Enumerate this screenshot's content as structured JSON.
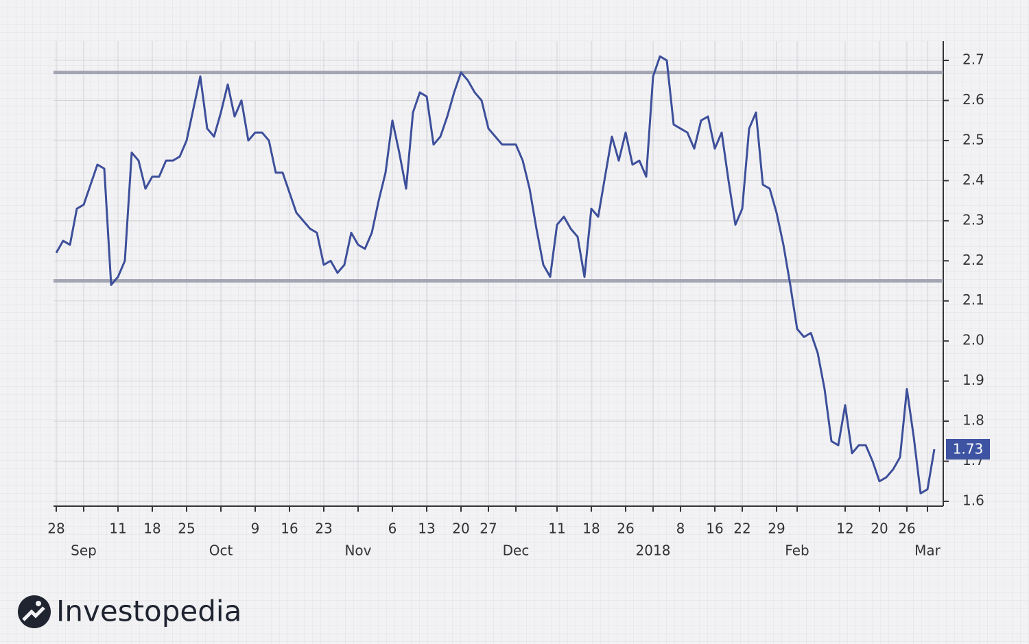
{
  "chart_data": {
    "type": "line",
    "categories": [
      "28",
      null,
      null,
      null,
      null,
      null,
      null,
      null,
      null,
      "11",
      null,
      null,
      null,
      null,
      "18",
      null,
      null,
      null,
      null,
      "25",
      null,
      null,
      null,
      null,
      null,
      null,
      null,
      null,
      null,
      "9",
      null,
      null,
      null,
      null,
      "16",
      null,
      null,
      null,
      null,
      "23",
      null,
      null,
      null,
      null,
      null,
      null,
      null,
      null,
      null,
      "6",
      null,
      null,
      null,
      null,
      "13",
      null,
      null,
      null,
      null,
      "20",
      null,
      null,
      null,
      "27",
      null,
      null,
      null,
      null,
      null,
      null,
      null,
      null,
      null,
      "11",
      null,
      null,
      null,
      null,
      "18",
      null,
      null,
      null,
      null,
      "26",
      null,
      null,
      null,
      null,
      null,
      null,
      null,
      "8",
      null,
      null,
      null,
      null,
      "16",
      null,
      null,
      null,
      "22",
      null,
      null,
      null,
      null,
      "29",
      null,
      null,
      null,
      null,
      null,
      null,
      null,
      null,
      null,
      "12",
      null,
      null,
      null,
      null,
      "20",
      null,
      null,
      null,
      "26",
      null,
      null,
      null,
      null
    ],
    "month_labels": [
      null,
      null,
      null,
      null,
      "Sep",
      null,
      null,
      null,
      null,
      null,
      null,
      null,
      null,
      null,
      null,
      null,
      null,
      null,
      null,
      null,
      null,
      null,
      null,
      null,
      "Oct",
      null,
      null,
      null,
      null,
      null,
      null,
      null,
      null,
      null,
      null,
      null,
      null,
      null,
      null,
      null,
      null,
      null,
      null,
      null,
      "Nov",
      null,
      null,
      null,
      null,
      null,
      null,
      null,
      null,
      null,
      null,
      null,
      null,
      null,
      null,
      null,
      null,
      null,
      null,
      null,
      null,
      null,
      null,
      "Dec",
      null,
      null,
      null,
      null,
      null,
      null,
      null,
      null,
      null,
      null,
      null,
      null,
      null,
      null,
      null,
      null,
      null,
      null,
      null,
      "2018",
      null,
      null,
      null,
      null,
      null,
      null,
      null,
      null,
      null,
      null,
      null,
      null,
      null,
      null,
      null,
      null,
      null,
      null,
      null,
      null,
      "Feb",
      null,
      null,
      null,
      null,
      null,
      null,
      null,
      null,
      null,
      null,
      null,
      null,
      null,
      null,
      null,
      null,
      null,
      null,
      "Mar",
      null
    ],
    "series": [
      {
        "color": "#3d4f9a",
        "values": [
          2.22,
          2.25,
          2.24,
          2.33,
          2.34,
          2.39,
          2.44,
          2.43,
          2.14,
          2.16,
          2.2,
          2.47,
          2.45,
          2.38,
          2.41,
          2.41,
          2.45,
          2.45,
          2.46,
          2.5,
          2.58,
          2.66,
          2.53,
          2.51,
          2.57,
          2.64,
          2.56,
          2.6,
          2.5,
          2.52,
          2.52,
          2.5,
          2.42,
          2.42,
          2.37,
          2.32,
          2.3,
          2.28,
          2.27,
          2.19,
          2.2,
          2.17,
          2.19,
          2.27,
          2.24,
          2.23,
          2.27,
          2.35,
          2.42,
          2.55,
          2.47,
          2.38,
          2.57,
          2.62,
          2.61,
          2.49,
          2.51,
          2.56,
          2.62,
          2.67,
          2.65,
          2.62,
          2.6,
          2.53,
          2.51,
          2.49,
          2.49,
          2.49,
          2.45,
          2.38,
          2.28,
          2.19,
          2.16,
          2.29,
          2.31,
          2.28,
          2.26,
          2.16,
          2.33,
          2.31,
          2.41,
          2.51,
          2.45,
          2.52,
          2.44,
          2.45,
          2.41,
          2.66,
          2.71,
          2.7,
          2.54,
          2.53,
          2.52,
          2.48,
          2.55,
          2.56,
          2.48,
          2.52,
          2.4,
          2.29,
          2.33,
          2.53,
          2.57,
          2.39,
          2.38,
          2.32,
          2.24,
          2.14,
          2.03,
          2.01,
          2.02,
          1.97,
          1.88,
          1.75,
          1.74,
          1.84,
          1.72,
          1.74,
          1.74,
          1.7,
          1.65,
          1.66,
          1.68,
          1.71,
          1.88,
          1.76,
          1.62,
          1.63,
          1.73
        ]
      }
    ],
    "reference_lines": [
      2.67,
      2.15
    ],
    "reference_color": "#a3a5b3",
    "last_value_color": "#3e54a3",
    "ylim": [
      1.588,
      2.748
    ],
    "yticks": [
      1.6,
      1.7,
      1.8,
      1.9,
      {
        "value": 2,
        "label": "2.0"
      },
      2.1,
      2.2,
      2.3,
      2.4,
      2.5,
      2.6,
      2.7
    ],
    "grid": true
  },
  "logo": "Investopedia"
}
